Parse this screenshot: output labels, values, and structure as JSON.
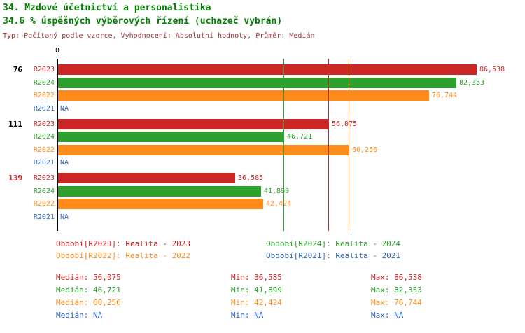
{
  "colors": {
    "R2023": "#cc2626",
    "R2024": "#2ea02e",
    "R2022": "#ff8c1a",
    "R2021": "#3366bb",
    "title_text": "#008000",
    "meta_text": "#993333",
    "axis": "#000000"
  },
  "chart_data": {
    "type": "bar",
    "orientation": "horizontal",
    "title": "34. Mzdové účetnictví a personalistika",
    "subtitle": "34.6 % úspěšných výběrových řízení (uchazeč vybrán)",
    "meta": "Typ: Počítaný podle vzorce, Vyhodnocení: Absolutní hodnoty, Průměr: Medián",
    "x_zero_label": "0",
    "xlim": [
      0,
      86538
    ],
    "grid": false,
    "series_order": [
      "R2023",
      "R2024",
      "R2022",
      "R2021"
    ],
    "groups": [
      {
        "label": "76",
        "label_color": "#000000",
        "bars": [
          {
            "series": "R2023",
            "value": 86538,
            "label": "86,538"
          },
          {
            "series": "R2024",
            "value": 82353,
            "label": "82,353"
          },
          {
            "series": "R2022",
            "value": 76744,
            "label": "76,744"
          },
          {
            "series": "R2021",
            "value": null,
            "label": "NA"
          }
        ]
      },
      {
        "label": "111",
        "label_color": "#000000",
        "bars": [
          {
            "series": "R2023",
            "value": 56075,
            "label": "56,075"
          },
          {
            "series": "R2024",
            "value": 46721,
            "label": "46,721"
          },
          {
            "series": "R2022",
            "value": 60256,
            "label": "60,256"
          },
          {
            "series": "R2021",
            "value": null,
            "label": "NA"
          }
        ]
      },
      {
        "label": "139",
        "label_color": "#cc2626",
        "bars": [
          {
            "series": "R2023",
            "value": 36585,
            "label": "36,585"
          },
          {
            "series": "R2024",
            "value": 41899,
            "label": "41,899"
          },
          {
            "series": "R2022",
            "value": 42424,
            "label": "42,424"
          },
          {
            "series": "R2021",
            "value": null,
            "label": "NA"
          }
        ]
      }
    ],
    "reference_lines": [
      {
        "series": "R2024",
        "value": 46721
      },
      {
        "series": "R2023",
        "value": 56075
      },
      {
        "series": "R2022",
        "value": 60256
      }
    ]
  },
  "legend": {
    "items": [
      {
        "series": "R2023",
        "text": "Období[R2023]: Realita - 2023"
      },
      {
        "series": "R2024",
        "text": "Období[R2024]: Realita - 2024"
      },
      {
        "series": "R2022",
        "text": "Období[R2022]: Realita - 2022"
      },
      {
        "series": "R2021",
        "text": "Období[R2021]: Realita - 2021"
      }
    ]
  },
  "stats": {
    "rows": [
      {
        "series": "R2023",
        "median": "Medián: 56,075",
        "min": "Min: 36,585",
        "max": "Max: 86,538"
      },
      {
        "series": "R2024",
        "median": "Medián: 46,721",
        "min": "Min: 41,899",
        "max": "Max: 82,353"
      },
      {
        "series": "R2022",
        "median": "Medián: 60,256",
        "min": "Min: 42,424",
        "max": "Max: 76,744"
      },
      {
        "series": "R2021",
        "median": "Medián: NA",
        "min": "Min: NA",
        "max": "Max: NA"
      }
    ]
  }
}
